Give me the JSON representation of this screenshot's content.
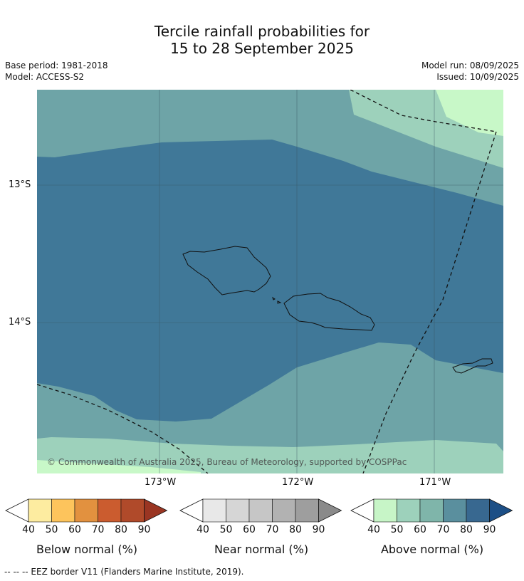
{
  "title": {
    "line1": "Tercile rainfall probabilities for",
    "line2": "15 to 28 September 2025"
  },
  "meta": {
    "base_period": "Base period: 1981-2018",
    "model": "Model: ACCESS-S2",
    "model_run": "Model run: 08/09/2025",
    "issued": "Issued: 10/09/2025"
  },
  "map": {
    "lat_labels": [
      "13°S",
      "14°S"
    ],
    "lon_labels": [
      "173°W",
      "172°W",
      "171°W"
    ],
    "copyright": "© Commonwealth of Australia 2025, Bureau of Meteorology, supported by COSPPac",
    "colors": {
      "below_bins": [
        "#fdeca0",
        "#fdc45c",
        "#e2913f",
        "#cb5c2f",
        "#b04a2a",
        "#9a3522"
      ],
      "near_bins": [
        "#e8e8e8",
        "#d6d6d6",
        "#c6c6c6",
        "#b2b2b2",
        "#9e9e9e",
        "#8a8a8a"
      ],
      "above_bins": [
        "#c7f5c7",
        "#9dd1bb",
        "#7fb5aa",
        "#5a8f9e",
        "#386890",
        "#1c4f86"
      ],
      "band_60": "#9dd1bb",
      "band_70": "#6ea4a7",
      "band_80": "#407898",
      "band_50": "#c8f8c8"
    }
  },
  "colorbars": [
    {
      "label": "Below normal (%)",
      "ticks": [
        "40",
        "50",
        "60",
        "70",
        "80",
        "90"
      ]
    },
    {
      "label": "Near normal (%)",
      "ticks": [
        "40",
        "50",
        "60",
        "70",
        "80",
        "90"
      ]
    },
    {
      "label": "Above normal (%)",
      "ticks": [
        "40",
        "50",
        "60",
        "70",
        "80",
        "90"
      ]
    }
  ],
  "footer": "--  --  -- EEZ border V11 (Flanders Marine Institute, 2019)."
}
